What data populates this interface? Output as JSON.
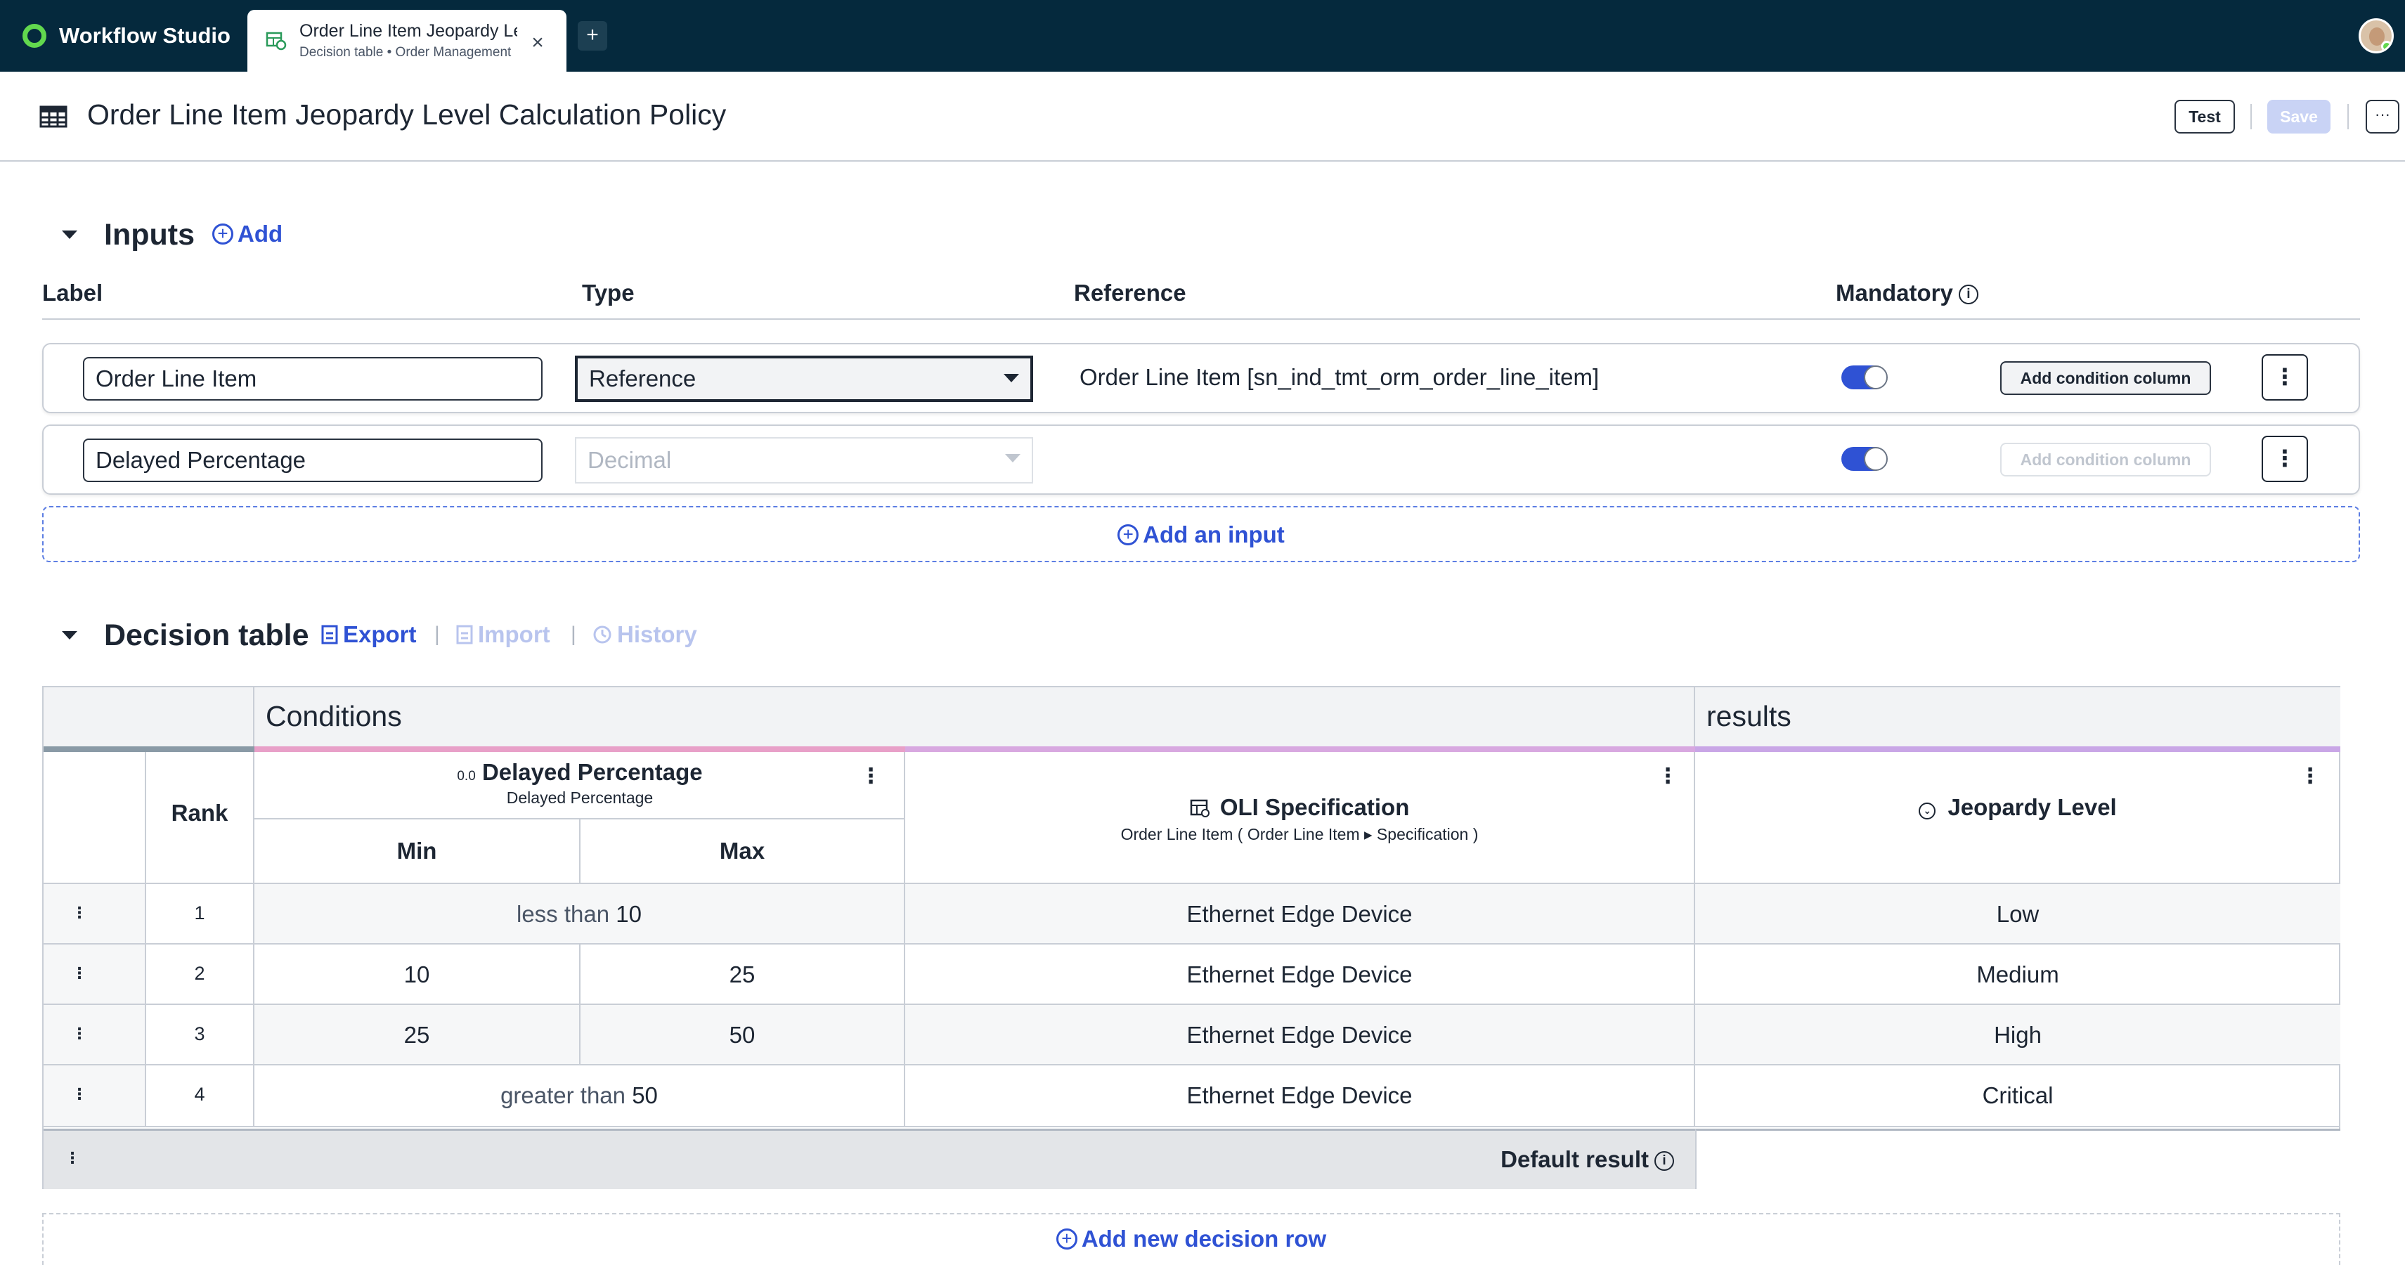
{
  "app": {
    "name": "Workflow Studio"
  },
  "tab": {
    "title": "Order Line Item Jeopardy Level Calculation Policy",
    "subtitle": "Decision table • Order Management",
    "close": "×",
    "new_tab": "+"
  },
  "page": {
    "title": "Order Line Item Jeopardy Level Calculation Policy"
  },
  "toolbar": {
    "test": "Test",
    "save": "Save",
    "more": "···"
  },
  "inputs": {
    "title": "Inputs",
    "add": "Add",
    "headers": {
      "label": "Label",
      "type": "Type",
      "reference": "Reference",
      "mandatory": "Mandatory"
    },
    "rows": [
      {
        "label": "Order Line Item",
        "type": "Reference",
        "reference": "Order Line Item [sn_ind_tmt_orm_order_line_item]",
        "mandatory": true,
        "add_condition": "Add condition column"
      },
      {
        "label": "Delayed Percentage",
        "type": "Decimal",
        "reference": "",
        "mandatory": true,
        "add_condition": "Add condition column"
      }
    ],
    "add_input": "Add an input"
  },
  "decision_table": {
    "title": "Decision table",
    "export": "Export",
    "import": "Import",
    "history": "History",
    "conditions_label": "Conditions",
    "results_label": "results",
    "rank_label": "Rank",
    "col_delayed": {
      "type_badge": "0.0",
      "title": "Delayed Percentage",
      "subtitle": "Delayed Percentage",
      "min": "Min",
      "max": "Max"
    },
    "col_oli": {
      "title": "OLI Specification",
      "subtitle": "Order Line Item ( Order Line Item ▸ Specification )"
    },
    "col_jeopardy": {
      "title": "Jeopardy Level"
    },
    "rows": [
      {
        "rank": "1",
        "min": "",
        "max": "",
        "range_text": "less than",
        "range_value": "10",
        "oli": "Ethernet Edge Device",
        "result": "Low"
      },
      {
        "rank": "2",
        "min": "10",
        "max": "25",
        "range_text": "",
        "range_value": "",
        "oli": "Ethernet Edge Device",
        "result": "Medium"
      },
      {
        "rank": "3",
        "min": "25",
        "max": "50",
        "range_text": "",
        "range_value": "",
        "oli": "Ethernet Edge Device",
        "result": "High"
      },
      {
        "rank": "4",
        "min": "",
        "max": "",
        "range_text": "greater than",
        "range_value": "50",
        "oli": "Ethernet Edge Device",
        "result": "Critical"
      }
    ],
    "default_result": "Default result",
    "add_row": "Add new decision row"
  },
  "colors": {
    "topbar": "#05293d",
    "accent": "#2f52d4",
    "brand_green": "#62d84e",
    "strip_conditions": "#e8a0c8",
    "strip_results": "#c9a6e6",
    "strip_rank": "#8a9aa6"
  },
  "icons": [
    "brand-logo",
    "decision-table-icon",
    "close-icon",
    "plus-icon",
    "table-icon",
    "chevron-down-icon",
    "add-circle-icon",
    "info-icon",
    "export-icon",
    "import-icon",
    "history-icon",
    "kebab-icon",
    "reference-table-icon",
    "choice-icon"
  ]
}
